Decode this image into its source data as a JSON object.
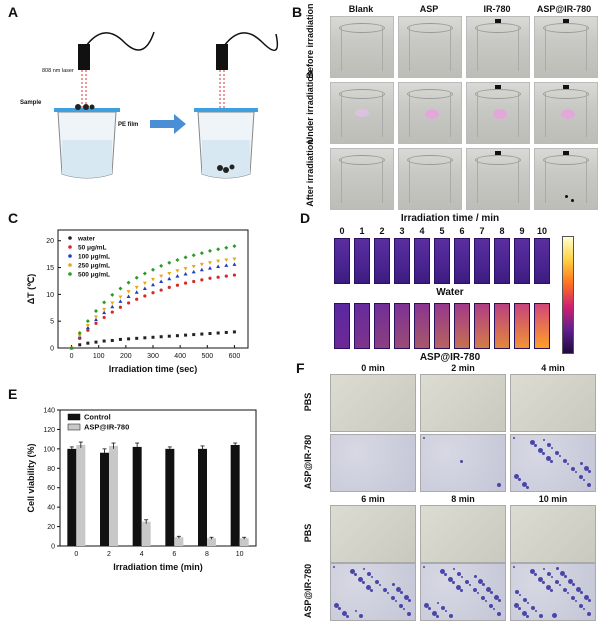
{
  "panels": {
    "A": "A",
    "B": "B",
    "C": "C",
    "D": "D",
    "E": "E",
    "F": "F"
  },
  "panel_a": {
    "laser": "808 nm laser",
    "sample": "Sample",
    "film": "PE film"
  },
  "panel_b": {
    "columns": [
      "Blank",
      "ASP",
      "IR-780",
      "ASP@IR-780"
    ],
    "rows": [
      "Before irradiation",
      "Under irradiation",
      "After irradiation"
    ]
  },
  "panel_d": {
    "title": "Irradiation time / min",
    "times": [
      "0",
      "1",
      "2",
      "3",
      "4",
      "5",
      "6",
      "7",
      "8",
      "9",
      "10"
    ],
    "row1": "Water",
    "row2": "ASP@IR-780"
  },
  "panel_f": {
    "times_top": [
      "0 min",
      "2 min",
      "4 min"
    ],
    "times_bottom": [
      "6 min",
      "8 min",
      "10 min"
    ],
    "rows": [
      "PBS",
      "ASP@IR-780"
    ]
  },
  "chart_data": [
    {
      "id": "C",
      "type": "scatter",
      "xlabel": "Irradiation time (sec)",
      "ylabel": "ΔT (℃)",
      "xlim": [
        -50,
        650
      ],
      "ylim": [
        0,
        22
      ],
      "xticks": [
        0,
        100,
        200,
        300,
        400,
        500,
        600
      ],
      "yticks": [
        0,
        5,
        10,
        15,
        20
      ],
      "legend_position": "top-left",
      "x": [
        0,
        30,
        60,
        90,
        120,
        150,
        180,
        210,
        240,
        270,
        300,
        330,
        360,
        390,
        420,
        450,
        480,
        510,
        540,
        570,
        600
      ],
      "series": [
        {
          "name": "water",
          "color": "#222222",
          "values": [
            0,
            0.6,
            0.9,
            1.1,
            1.3,
            1.4,
            1.6,
            1.7,
            1.8,
            1.9,
            2.0,
            2.1,
            2.2,
            2.3,
            2.4,
            2.5,
            2.6,
            2.7,
            2.8,
            2.9,
            3.0
          ]
        },
        {
          "name": "50 μg/mL",
          "color": "#d42a2a",
          "values": [
            0,
            1.8,
            3.3,
            4.6,
            5.7,
            6.7,
            7.6,
            8.4,
            9.1,
            9.7,
            10.3,
            10.8,
            11.3,
            11.7,
            12.1,
            12.4,
            12.7,
            13.0,
            13.2,
            13.4,
            13.6
          ]
        },
        {
          "name": "100 μg/mL",
          "color": "#1f3fbf",
          "values": [
            0,
            2.1,
            3.8,
            5.3,
            6.6,
            7.7,
            8.7,
            9.6,
            10.4,
            11.1,
            11.8,
            12.4,
            12.9,
            13.4,
            13.8,
            14.2,
            14.6,
            14.9,
            15.2,
            15.4,
            15.6
          ]
        },
        {
          "name": "250 μg/mL",
          "color": "#e6a817",
          "values": [
            0,
            2.3,
            4.2,
            5.8,
            7.2,
            8.4,
            9.5,
            10.5,
            11.3,
            12.1,
            12.8,
            13.4,
            13.9,
            14.4,
            14.8,
            15.2,
            15.6,
            15.9,
            16.2,
            16.4,
            16.6
          ]
        },
        {
          "name": "500 μg/mL",
          "color": "#2a9a2a",
          "values": [
            0,
            2.8,
            5.0,
            6.9,
            8.5,
            9.9,
            11.1,
            12.2,
            13.1,
            13.9,
            14.6,
            15.3,
            15.9,
            16.4,
            16.9,
            17.3,
            17.7,
            18.1,
            18.4,
            18.7,
            19.0
          ]
        }
      ]
    },
    {
      "id": "E",
      "type": "bar",
      "xlabel": "Irradiation time (min)",
      "ylabel": "Cell viability (%)",
      "ylim": [
        0,
        140
      ],
      "yticks": [
        0,
        20,
        40,
        60,
        80,
        100,
        120,
        140
      ],
      "categories": [
        "0",
        "2",
        "4",
        "6",
        "8",
        "10"
      ],
      "legend_position": "top-left",
      "series": [
        {
          "name": "Control",
          "color": "#111111",
          "values": [
            100,
            96,
            102,
            100,
            100,
            104
          ],
          "errors": [
            2,
            4,
            4,
            2,
            3,
            2
          ]
        },
        {
          "name": "ASP@IR-780",
          "color": "#c8c8c8",
          "values": [
            104,
            103,
            25,
            9,
            8,
            8
          ],
          "errors": [
            3,
            3,
            2,
            1,
            1,
            1
          ]
        }
      ]
    }
  ]
}
